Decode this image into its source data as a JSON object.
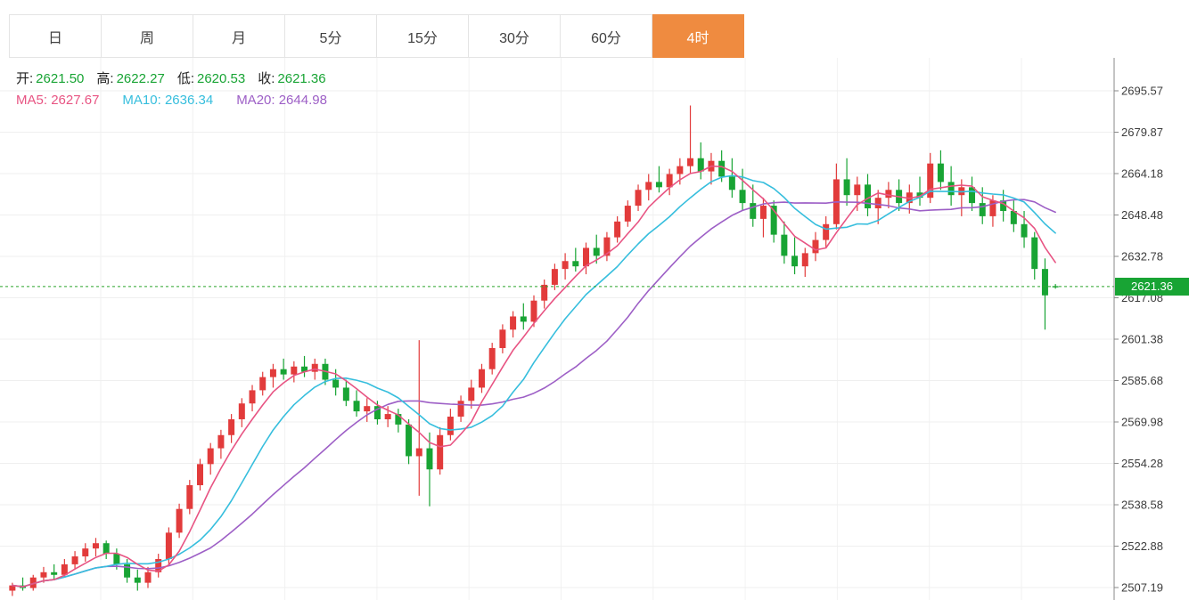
{
  "tabs": {
    "items": [
      {
        "id": "day",
        "label": "日"
      },
      {
        "id": "week",
        "label": "周"
      },
      {
        "id": "month",
        "label": "月"
      },
      {
        "id": "5min",
        "label": "5分"
      },
      {
        "id": "15min",
        "label": "15分"
      },
      {
        "id": "30min",
        "label": "30分"
      },
      {
        "id": "60min",
        "label": "60分"
      },
      {
        "id": "4hour",
        "label": "4时"
      }
    ],
    "selected_label": "4时"
  },
  "ohlc_bar": {
    "open_label": "开:",
    "open_value": "2621.50",
    "high_label": "高:",
    "high_value": "2622.27",
    "low_label": "低:",
    "low_value": "2620.53",
    "close_label": "收:",
    "close_value": "2621.36"
  },
  "ma_bar": {
    "ma5_label": "MA5:",
    "ma5_value": "2627.67",
    "ma10_label": "MA10:",
    "ma10_value": "2636.34",
    "ma20_label": "MA20:",
    "ma20_value": "2644.98"
  },
  "current_price": {
    "value": "2621.36"
  },
  "colors": {
    "up": "#e23b3b",
    "down": "#18a434",
    "ma5": "#e85483",
    "ma10": "#36bedd",
    "ma20": "#9d5fc6",
    "ohlc_value": "#18a434",
    "current_line": "#2aa52a",
    "badge_bg": "#18a434",
    "tab_selected_bg": "#ef8b40",
    "grid": "#efefef",
    "vgrid": "#f2f2f2",
    "axis": "#888888",
    "tick_text": "#3c3c3c"
  },
  "chart_data": {
    "type": "candlestick",
    "interval": "4时",
    "legend": [
      "MA5",
      "MA10",
      "MA20"
    ],
    "y_axis_ticks": [
      2695.57,
      2679.87,
      2664.18,
      2648.48,
      2632.78,
      2617.08,
      2601.38,
      2585.68,
      2569.98,
      2554.28,
      2538.58,
      2522.88,
      2507.19
    ],
    "ylim": [
      2500,
      2700
    ],
    "current_price": 2621.36,
    "latest_ohlc": {
      "open": 2621.5,
      "high": 2622.27,
      "low": 2620.53,
      "close": 2621.36
    },
    "ma_values": {
      "MA5": 2627.67,
      "MA10": 2636.34,
      "MA20": 2644.98
    },
    "candles": [
      [
        2506,
        2509,
        2504,
        2508
      ],
      [
        2508,
        2511,
        2506,
        2507
      ],
      [
        2507,
        2512,
        2506,
        2511
      ],
      [
        2511,
        2515,
        2509,
        2513
      ],
      [
        2513,
        2516,
        2510,
        2512
      ],
      [
        2512,
        2518,
        2511,
        2516
      ],
      [
        2516,
        2521,
        2514,
        2519
      ],
      [
        2519,
        2524,
        2517,
        2522
      ],
      [
        2522,
        2526,
        2519,
        2524
      ],
      [
        2524,
        2525,
        2518,
        2520
      ],
      [
        2520,
        2522,
        2514,
        2516
      ],
      [
        2516,
        2518,
        2509,
        2511
      ],
      [
        2511,
        2514,
        2506,
        2509
      ],
      [
        2509,
        2515,
        2507,
        2513
      ],
      [
        2513,
        2520,
        2511,
        2518
      ],
      [
        2518,
        2530,
        2516,
        2528
      ],
      [
        2528,
        2539,
        2526,
        2537
      ],
      [
        2537,
        2548,
        2535,
        2546
      ],
      [
        2546,
        2556,
        2544,
        2554
      ],
      [
        2554,
        2562,
        2550,
        2560
      ],
      [
        2560,
        2567,
        2556,
        2565
      ],
      [
        2565,
        2573,
        2562,
        2571
      ],
      [
        2571,
        2579,
        2568,
        2577
      ],
      [
        2577,
        2584,
        2574,
        2582
      ],
      [
        2582,
        2589,
        2580,
        2587
      ],
      [
        2587,
        2592,
        2583,
        2590
      ],
      [
        2590,
        2594,
        2586,
        2588
      ],
      [
        2588,
        2593,
        2585,
        2591
      ],
      [
        2591,
        2595,
        2587,
        2589
      ],
      [
        2589,
        2594,
        2586,
        2592
      ],
      [
        2592,
        2594,
        2584,
        2586
      ],
      [
        2586,
        2590,
        2580,
        2583
      ],
      [
        2583,
        2586,
        2576,
        2578
      ],
      [
        2578,
        2582,
        2572,
        2574
      ],
      [
        2574,
        2579,
        2570,
        2576
      ],
      [
        2576,
        2578,
        2569,
        2571
      ],
      [
        2571,
        2576,
        2568,
        2573
      ],
      [
        2573,
        2575,
        2566,
        2569
      ],
      [
        2569,
        2571,
        2554,
        2557
      ],
      [
        2557,
        2601,
        2542,
        2560
      ],
      [
        2560,
        2566,
        2538,
        2552
      ],
      [
        2552,
        2568,
        2550,
        2565
      ],
      [
        2565,
        2575,
        2563,
        2572
      ],
      [
        2572,
        2580,
        2570,
        2578
      ],
      [
        2578,
        2586,
        2575,
        2583
      ],
      [
        2583,
        2592,
        2581,
        2590
      ],
      [
        2590,
        2600,
        2588,
        2598
      ],
      [
        2598,
        2607,
        2596,
        2605
      ],
      [
        2605,
        2612,
        2602,
        2610
      ],
      [
        2610,
        2615,
        2605,
        2608
      ],
      [
        2608,
        2618,
        2606,
        2616
      ],
      [
        2616,
        2624,
        2613,
        2622
      ],
      [
        2622,
        2630,
        2620,
        2628
      ],
      [
        2628,
        2634,
        2624,
        2631
      ],
      [
        2631,
        2636,
        2627,
        2629
      ],
      [
        2629,
        2638,
        2626,
        2636
      ],
      [
        2636,
        2641,
        2630,
        2633
      ],
      [
        2633,
        2642,
        2631,
        2640
      ],
      [
        2640,
        2648,
        2638,
        2646
      ],
      [
        2646,
        2654,
        2644,
        2652
      ],
      [
        2652,
        2660,
        2650,
        2658
      ],
      [
        2658,
        2664,
        2654,
        2661
      ],
      [
        2661,
        2667,
        2657,
        2659
      ],
      [
        2659,
        2666,
        2656,
        2664
      ],
      [
        2664,
        2670,
        2660,
        2667
      ],
      [
        2667,
        2690,
        2664,
        2670
      ],
      [
        2670,
        2676,
        2662,
        2665
      ],
      [
        2665,
        2672,
        2660,
        2669
      ],
      [
        2669,
        2673,
        2661,
        2663
      ],
      [
        2663,
        2670,
        2655,
        2658
      ],
      [
        2658,
        2666,
        2650,
        2653
      ],
      [
        2653,
        2660,
        2644,
        2647
      ],
      [
        2647,
        2655,
        2640,
        2652
      ],
      [
        2652,
        2654,
        2638,
        2641
      ],
      [
        2641,
        2646,
        2630,
        2633
      ],
      [
        2633,
        2640,
        2626,
        2629
      ],
      [
        2629,
        2636,
        2625,
        2634
      ],
      [
        2634,
        2642,
        2631,
        2639
      ],
      [
        2639,
        2648,
        2636,
        2645
      ],
      [
        2645,
        2668,
        2643,
        2662
      ],
      [
        2662,
        2670,
        2652,
        2656
      ],
      [
        2656,
        2663,
        2650,
        2660
      ],
      [
        2660,
        2664,
        2648,
        2651
      ],
      [
        2651,
        2658,
        2645,
        2655
      ],
      [
        2655,
        2661,
        2651,
        2658
      ],
      [
        2658,
        2662,
        2650,
        2653
      ],
      [
        2653,
        2660,
        2649,
        2657
      ],
      [
        2657,
        2663,
        2652,
        2655
      ],
      [
        2655,
        2672,
        2653,
        2668
      ],
      [
        2668,
        2673,
        2658,
        2661
      ],
      [
        2661,
        2667,
        2652,
        2656
      ],
      [
        2656,
        2662,
        2648,
        2659
      ],
      [
        2659,
        2663,
        2650,
        2653
      ],
      [
        2653,
        2659,
        2645,
        2648
      ],
      [
        2648,
        2656,
        2644,
        2654
      ],
      [
        2654,
        2658,
        2646,
        2650
      ],
      [
        2650,
        2654,
        2642,
        2645
      ],
      [
        2645,
        2650,
        2636,
        2640
      ],
      [
        2640,
        2642,
        2624,
        2628
      ],
      [
        2628,
        2632,
        2605,
        2618
      ],
      [
        2621.5,
        2622.27,
        2620.53,
        2621.36
      ]
    ]
  }
}
